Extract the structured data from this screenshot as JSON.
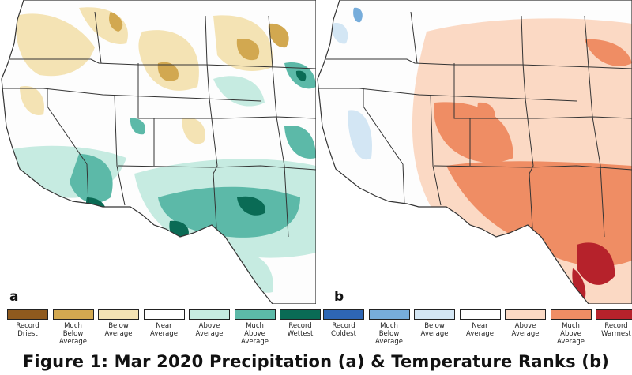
{
  "panels": [
    {
      "id": "a",
      "letter": "a",
      "map_name": "precipitation-rank-map"
    },
    {
      "id": "b",
      "letter": "b",
      "map_name": "temperature-rank-map"
    }
  ],
  "legend_precip": [
    {
      "lines": [
        "Record",
        "Driest"
      ],
      "color": "#8f5a1e"
    },
    {
      "lines": [
        "Much",
        "Below",
        "Average"
      ],
      "color": "#d2a850"
    },
    {
      "lines": [
        "Below",
        "Average"
      ],
      "color": "#f4e3b4"
    },
    {
      "lines": [
        "Near",
        "Average"
      ],
      "color": "#ffffff"
    },
    {
      "lines": [
        "Above",
        "Average"
      ],
      "color": "#c6ebe1"
    },
    {
      "lines": [
        "Much",
        "Above",
        "Average"
      ],
      "color": "#5cb9a8"
    },
    {
      "lines": [
        "Record",
        "Wettest"
      ],
      "color": "#0a6b55"
    }
  ],
  "legend_temp": [
    {
      "lines": [
        "Record",
        "Coldest"
      ],
      "color": "#2e66b5"
    },
    {
      "lines": [
        "Much",
        "Below",
        "Average"
      ],
      "color": "#77addb"
    },
    {
      "lines": [
        "Below",
        "Average"
      ],
      "color": "#d3e6f4"
    },
    {
      "lines": [
        "Near",
        "Average"
      ],
      "color": "#ffffff"
    },
    {
      "lines": [
        "Above",
        "Average"
      ],
      "color": "#fbd9c4"
    },
    {
      "lines": [
        "Much",
        "Above",
        "Average"
      ],
      "color": "#ef8d64"
    },
    {
      "lines": [
        "Record",
        "Warmest"
      ],
      "color": "#b6222b"
    }
  ],
  "caption": "Figure 1: Mar 2020 Precipitation (a) & Temperature Ranks (b)"
}
